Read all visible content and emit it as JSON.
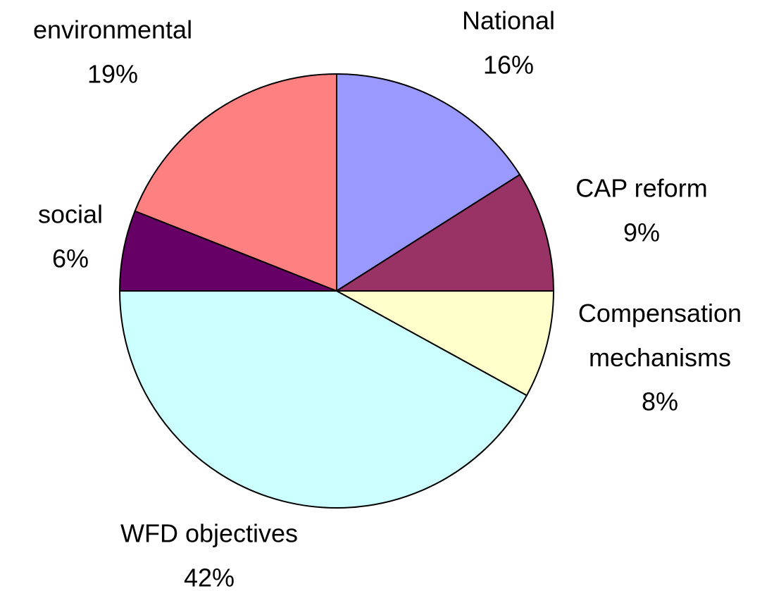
{
  "chart_data": {
    "type": "pie",
    "categories": [
      "National",
      "CAP reform",
      "Compensation mechanisms",
      "WFD objectives",
      "social",
      "environmental"
    ],
    "values": [
      16,
      9,
      8,
      42,
      6,
      19
    ],
    "value_labels": [
      "16%",
      "9%",
      "8%",
      "42%",
      "6%",
      "19%"
    ],
    "colors": [
      "#9999ff",
      "#993366",
      "#ffffcc",
      "#ccffff",
      "#660066",
      "#ff8080"
    ]
  }
}
